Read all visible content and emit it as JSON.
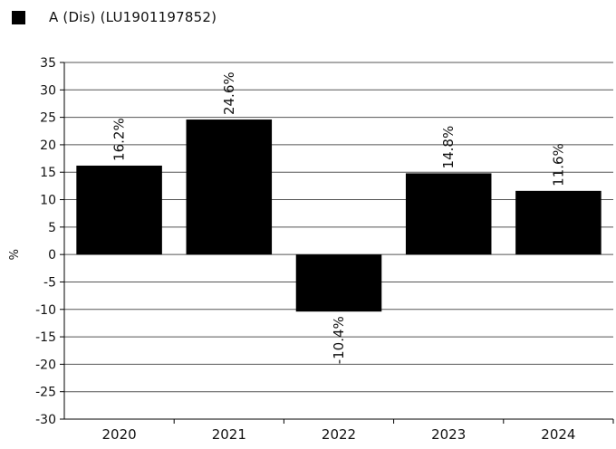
{
  "chart_data": {
    "type": "bar",
    "categories": [
      "2020",
      "2021",
      "2022",
      "2023",
      "2024"
    ],
    "series": [
      {
        "name": "A (Dis) (LU1901197852)",
        "values": [
          16.2,
          24.6,
          -10.4,
          14.8,
          11.6
        ],
        "color": "#000000"
      }
    ],
    "data_labels": [
      "16.2%",
      "24.6%",
      "-10.4%",
      "14.8%",
      "11.6%"
    ],
    "ylabel": "%",
    "ylim": [
      -30,
      35
    ],
    "yticks": [
      35,
      30,
      25,
      20,
      15,
      10,
      5,
      0,
      -5,
      -10,
      -15,
      -20,
      -25,
      -30
    ],
    "grid": true,
    "legend_position": "top-left"
  }
}
